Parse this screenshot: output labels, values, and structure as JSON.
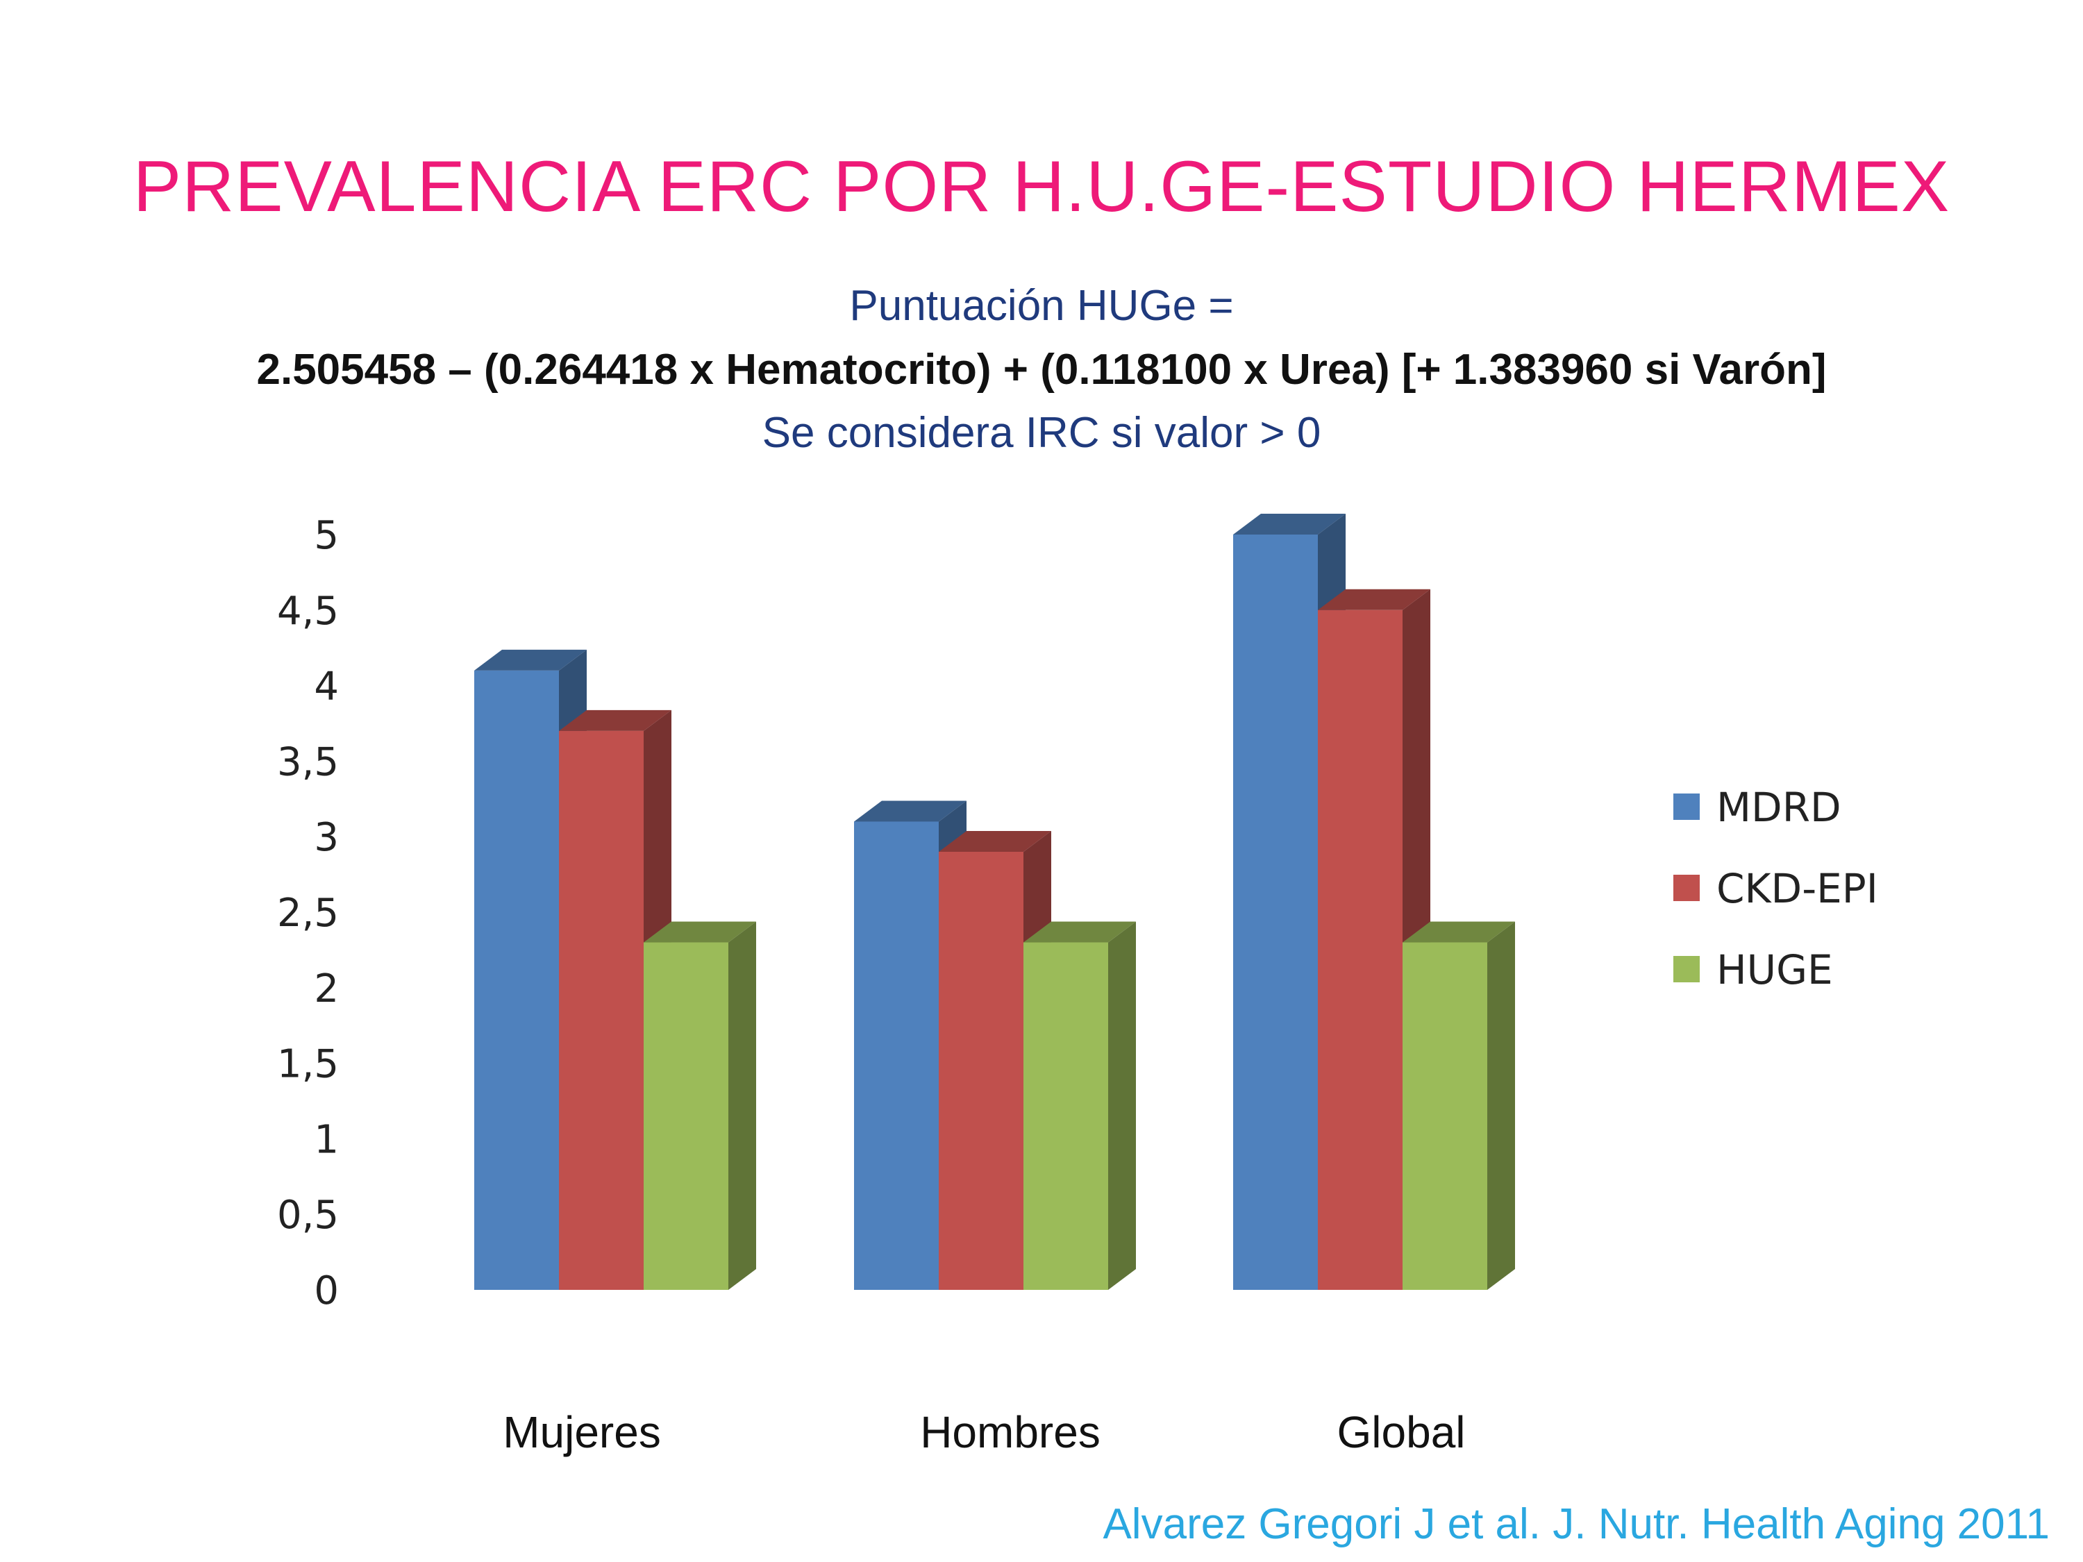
{
  "slide": {
    "title": "PREVALENCIA ERC POR H.U.GE-ESTUDIO HERMEX",
    "formula_label": "Puntuación HUGe =",
    "formula": "2.505458 – (0.264418 x Hematocrito) + (0.118100 x Urea) [+ 1.383960 si Varón]",
    "formula_note": "Se considera IRC si valor > 0",
    "citation": "Alvarez Gregori J et al. J. Nutr. Health Aging 2011"
  },
  "chart_data": {
    "type": "bar",
    "style": "3d-clustered-column",
    "categories": [
      "Mujeres",
      "Hombres",
      "Global"
    ],
    "series": [
      {
        "name": "MDRD",
        "values": [
          4.1,
          3.1,
          5.0
        ],
        "color": "#4f81bd"
      },
      {
        "name": "CKD-EPI",
        "values": [
          3.7,
          2.9,
          4.5
        ],
        "color": "#c0504d"
      },
      {
        "name": "HUGE",
        "values": [
          2.3,
          2.3,
          2.3
        ],
        "color": "#9bbb59"
      }
    ],
    "yticks": [
      "0",
      "0,5",
      "1",
      "1,5",
      "2",
      "2,5",
      "3",
      "3,5",
      "4",
      "4,5",
      "5"
    ],
    "ylim": [
      0,
      5
    ],
    "grid": false,
    "legend_position": "right"
  }
}
